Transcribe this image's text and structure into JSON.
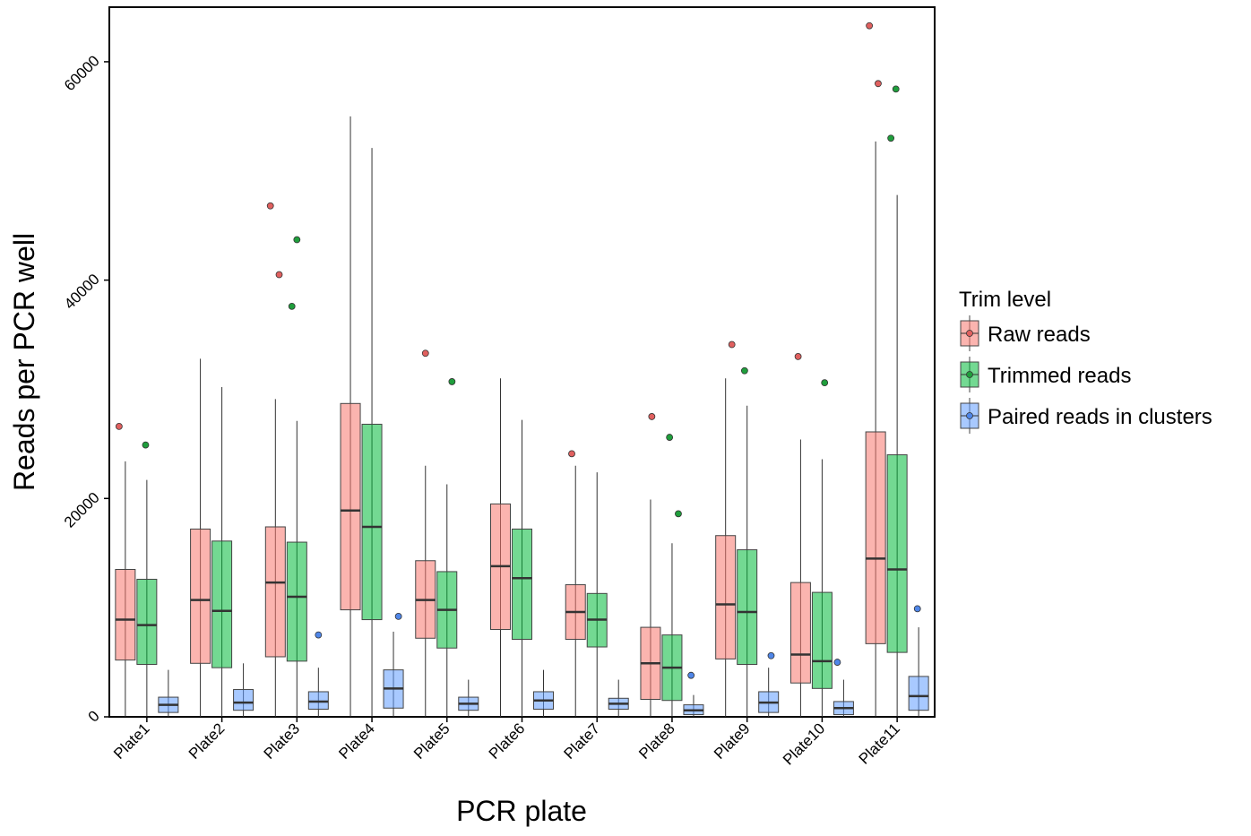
{
  "chart_data": {
    "type": "box",
    "x_label": "PCR plate",
    "y_label": "Reads per PCR well",
    "legend_title": "Trim level",
    "legend_position": "right",
    "categories": [
      "Plate1",
      "Plate2",
      "Plate3",
      "Plate4",
      "Plate5",
      "Plate6",
      "Plate7",
      "Plate8",
      "Plate9",
      "Plate10",
      "Plate11"
    ],
    "ylim": [
      0,
      65000
    ],
    "yticks": [
      0,
      20000,
      40000,
      60000
    ],
    "series": [
      {
        "name": "Raw reads",
        "color": "#f8766d",
        "point_color": "#e0605f",
        "boxes": [
          {
            "min": 0,
            "q1": 5200,
            "median": 8900,
            "q3": 13500,
            "max": 23400,
            "outliers": [
              26600
            ]
          },
          {
            "min": 0,
            "q1": 4900,
            "median": 10700,
            "q3": 17200,
            "max": 32800,
            "outliers": []
          },
          {
            "min": 0,
            "q1": 5500,
            "median": 12300,
            "q3": 17400,
            "max": 29100,
            "outliers": [
              40500,
              46800
            ]
          },
          {
            "min": 0,
            "q1": 9800,
            "median": 18900,
            "q3": 28700,
            "max": 55000,
            "outliers": []
          },
          {
            "min": 0,
            "q1": 7200,
            "median": 10700,
            "q3": 14300,
            "max": 23000,
            "outliers": [
              33300
            ]
          },
          {
            "min": 0,
            "q1": 8000,
            "median": 13800,
            "q3": 19500,
            "max": 31000,
            "outliers": []
          },
          {
            "min": 0,
            "q1": 7100,
            "median": 9600,
            "q3": 12100,
            "max": 23000,
            "outliers": [
              24100
            ]
          },
          {
            "min": 0,
            "q1": 1600,
            "median": 4900,
            "q3": 8200,
            "max": 19900,
            "outliers": [
              27500
            ]
          },
          {
            "min": 0,
            "q1": 5300,
            "median": 10300,
            "q3": 16600,
            "max": 31000,
            "outliers": [
              34100
            ]
          },
          {
            "min": 0,
            "q1": 3100,
            "median": 5700,
            "q3": 12300,
            "max": 25400,
            "outliers": [
              33000
            ]
          },
          {
            "min": 0,
            "q1": 6700,
            "median": 14500,
            "q3": 26100,
            "max": 52700,
            "outliers": [
              58000,
              63300
            ]
          }
        ]
      },
      {
        "name": "Trimmed reads",
        "color": "#00ba38",
        "point_color": "#1f9e3c",
        "boxes": [
          {
            "min": 0,
            "q1": 4800,
            "median": 8400,
            "q3": 12600,
            "max": 21700,
            "outliers": [
              24900
            ]
          },
          {
            "min": 0,
            "q1": 4500,
            "median": 9700,
            "q3": 16100,
            "max": 30200,
            "outliers": []
          },
          {
            "min": 0,
            "q1": 5100,
            "median": 11000,
            "q3": 16000,
            "max": 27100,
            "outliers": [
              37600,
              43700
            ]
          },
          {
            "min": 0,
            "q1": 8900,
            "median": 17400,
            "q3": 26800,
            "max": 52100,
            "outliers": []
          },
          {
            "min": 0,
            "q1": 6300,
            "median": 9800,
            "q3": 13300,
            "max": 21300,
            "outliers": [
              30700
            ]
          },
          {
            "min": 0,
            "q1": 7100,
            "median": 12700,
            "q3": 17200,
            "max": 27200,
            "outliers": []
          },
          {
            "min": 0,
            "q1": 6400,
            "median": 8900,
            "q3": 11300,
            "max": 22400,
            "outliers": []
          },
          {
            "min": 0,
            "q1": 1500,
            "median": 4500,
            "q3": 7500,
            "max": 15900,
            "outliers": [
              18600,
              25600
            ]
          },
          {
            "min": 0,
            "q1": 4800,
            "median": 9600,
            "q3": 15300,
            "max": 28500,
            "outliers": [
              31700
            ]
          },
          {
            "min": 0,
            "q1": 2600,
            "median": 5100,
            "q3": 11400,
            "max": 23600,
            "outliers": [
              30600
            ]
          },
          {
            "min": 0,
            "q1": 5900,
            "median": 13500,
            "q3": 24000,
            "max": 47800,
            "outliers": [
              53000,
              57500
            ]
          }
        ]
      },
      {
        "name": "Paired reads in clusters",
        "color": "#619cff",
        "point_color": "#4f86e8",
        "boxes": [
          {
            "min": 0,
            "q1": 400,
            "median": 1100,
            "q3": 1800,
            "max": 4300,
            "outliers": []
          },
          {
            "min": 0,
            "q1": 600,
            "median": 1300,
            "q3": 2500,
            "max": 4900,
            "outliers": []
          },
          {
            "min": 0,
            "q1": 700,
            "median": 1400,
            "q3": 2300,
            "max": 4500,
            "outliers": [
              7500
            ]
          },
          {
            "min": 0,
            "q1": 800,
            "median": 2600,
            "q3": 4300,
            "max": 7800,
            "outliers": [
              9200
            ]
          },
          {
            "min": 0,
            "q1": 600,
            "median": 1200,
            "q3": 1800,
            "max": 3400,
            "outliers": []
          },
          {
            "min": 0,
            "q1": 700,
            "median": 1500,
            "q3": 2300,
            "max": 4300,
            "outliers": []
          },
          {
            "min": 0,
            "q1": 700,
            "median": 1200,
            "q3": 1700,
            "max": 3400,
            "outliers": []
          },
          {
            "min": 0,
            "q1": 200,
            "median": 600,
            "q3": 1100,
            "max": 2000,
            "outliers": [
              3800
            ]
          },
          {
            "min": 0,
            "q1": 400,
            "median": 1300,
            "q3": 2300,
            "max": 4500,
            "outliers": [
              5600
            ]
          },
          {
            "min": 0,
            "q1": 200,
            "median": 800,
            "q3": 1400,
            "max": 3400,
            "outliers": [
              5000
            ]
          },
          {
            "min": 0,
            "q1": 600,
            "median": 1900,
            "q3": 3700,
            "max": 8200,
            "outliers": [
              9900
            ]
          }
        ]
      }
    ]
  }
}
